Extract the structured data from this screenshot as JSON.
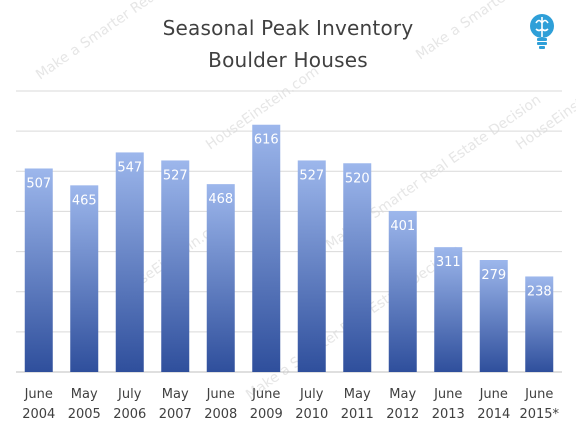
{
  "chart_data": {
    "type": "bar",
    "title": "Seasonal Peak Inventory",
    "subtitle": "Boulder Houses",
    "categories": [
      [
        "June",
        "2004"
      ],
      [
        "May",
        "2005"
      ],
      [
        "July",
        "2006"
      ],
      [
        "May",
        "2007"
      ],
      [
        "June",
        "2008"
      ],
      [
        "June",
        "2009"
      ],
      [
        "July",
        "2010"
      ],
      [
        "May",
        "2011"
      ],
      [
        "May",
        "2012"
      ],
      [
        "June",
        "2013"
      ],
      [
        "June",
        "2014"
      ],
      [
        "June",
        "2015*"
      ]
    ],
    "values": [
      507,
      465,
      547,
      527,
      468,
      616,
      527,
      520,
      401,
      311,
      279,
      238
    ],
    "ylim": [
      0,
      700
    ],
    "grid": true,
    "legend": "none",
    "xlabel": "",
    "ylabel": "",
    "colors": {
      "bar_top": "#9db7ec",
      "bar_bottom": "#2f4f9c",
      "grid": "#d9d9d9",
      "label": "#ffffff",
      "tick": "#404040"
    }
  },
  "watermark": {
    "texts": [
      "Make a Smarter Real Estate Decision",
      "HouseEinstein.com"
    ]
  },
  "logo": {
    "icon": "lightbulb-brain-icon",
    "color": "#2e9fd8"
  }
}
